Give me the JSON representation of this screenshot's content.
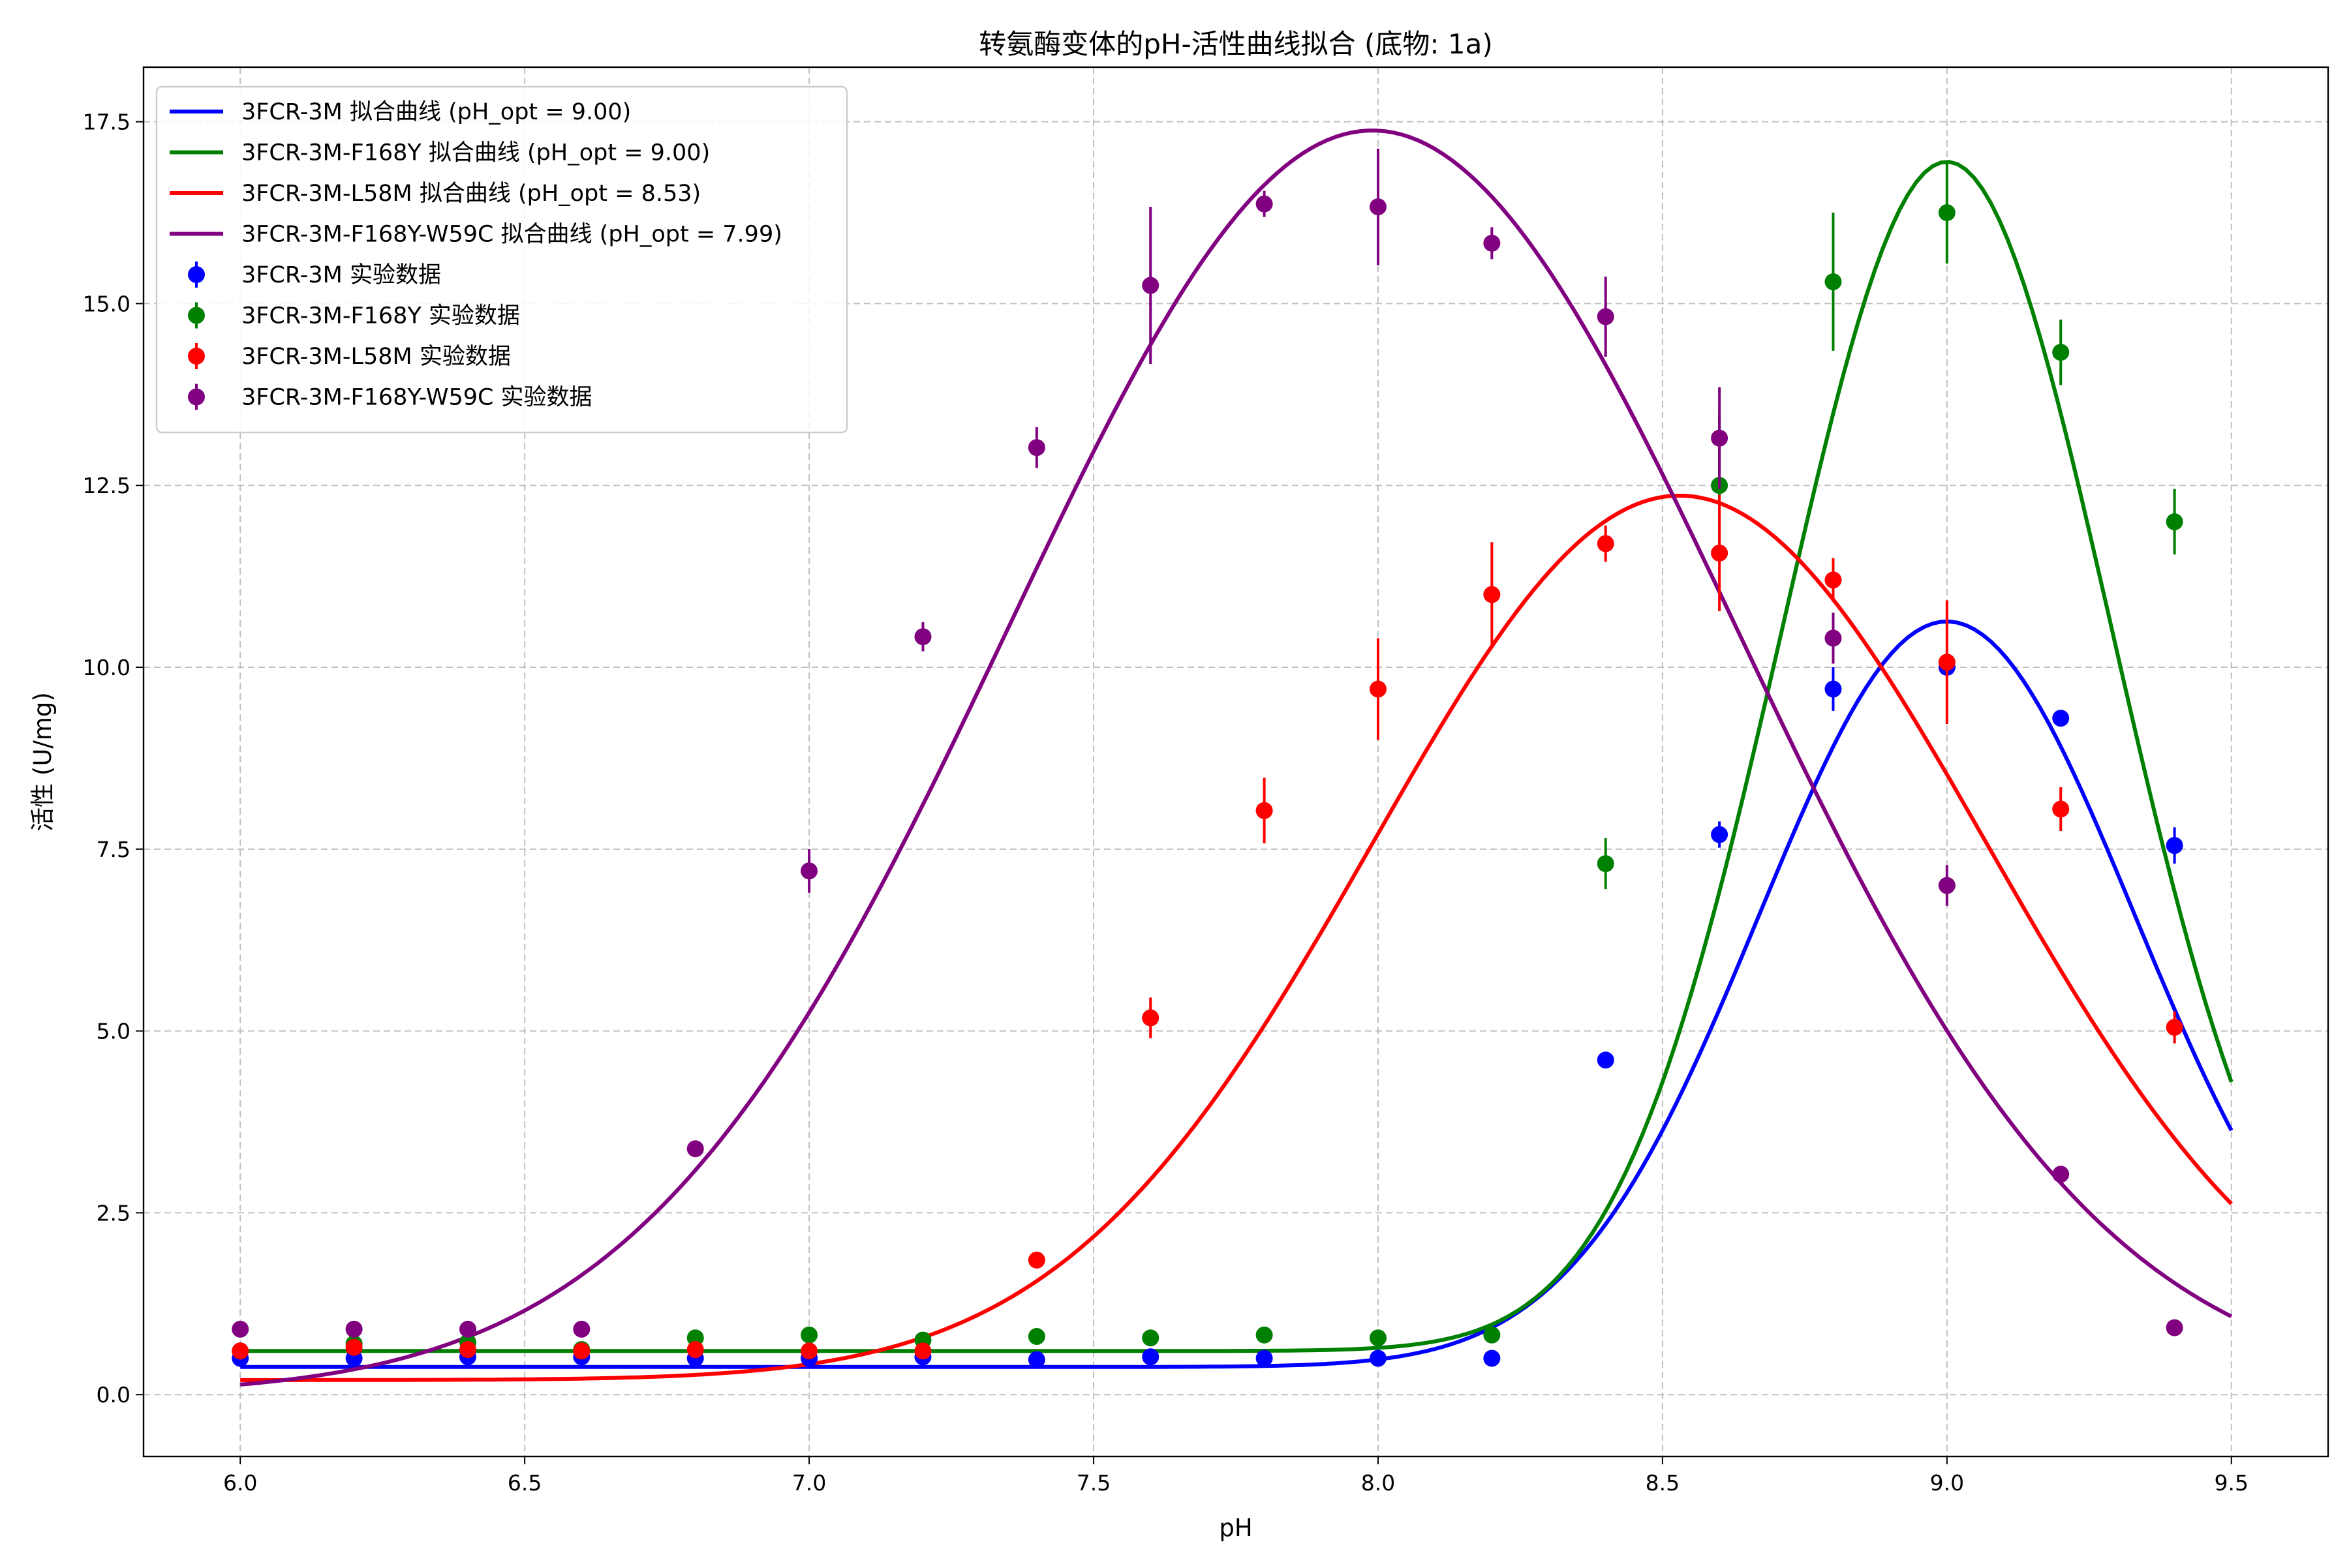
{
  "chart_data": {
    "type": "line",
    "title": "转氨酶变体的pH-活性曲线拟合 (底物: 1a)",
    "xlabel": "pH",
    "ylabel": "活性 (U/mg)",
    "xlim": [
      5.83,
      9.67
    ],
    "ylim": [
      -0.85,
      18.25
    ],
    "xticks": [
      6.0,
      6.5,
      7.0,
      7.5,
      8.0,
      8.5,
      9.0,
      9.5
    ],
    "xtick_labels": [
      "6.0",
      "6.5",
      "7.0",
      "7.5",
      "8.0",
      "8.5",
      "9.0",
      "9.5"
    ],
    "yticks": [
      0.0,
      2.5,
      5.0,
      7.5,
      10.0,
      12.5,
      15.0,
      17.5
    ],
    "ytick_labels": [
      "0.0",
      "2.5",
      "5.0",
      "7.5",
      "10.0",
      "12.5",
      "15.0",
      "17.5"
    ],
    "grid": true,
    "legend_position": "top-left",
    "fit_range": [
      6.0,
      9.5
    ],
    "series": [
      {
        "fit_name": "3FCR-3M 拟合曲线 (pH_opt = 9.00)",
        "data_name": "3FCR-3M 实验数据",
        "color": "#0000ff",
        "fit": {
          "model": "gaussian",
          "amplitude": 10.25,
          "center": 9.0,
          "sigma": 0.33,
          "baseline": 0.38
        },
        "points": [
          {
            "x": 6.0,
            "y": 0.5,
            "err": 0.0
          },
          {
            "x": 6.2,
            "y": 0.5,
            "err": 0.0
          },
          {
            "x": 6.4,
            "y": 0.52,
            "err": 0.0
          },
          {
            "x": 6.6,
            "y": 0.52,
            "err": 0.0
          },
          {
            "x": 6.8,
            "y": 0.5,
            "err": 0.0
          },
          {
            "x": 7.0,
            "y": 0.5,
            "err": 0.0
          },
          {
            "x": 7.2,
            "y": 0.52,
            "err": 0.0
          },
          {
            "x": 7.4,
            "y": 0.48,
            "err": 0.0
          },
          {
            "x": 7.6,
            "y": 0.52,
            "err": 0.0
          },
          {
            "x": 7.8,
            "y": 0.5,
            "err": 0.0
          },
          {
            "x": 8.0,
            "y": 0.5,
            "err": 0.0
          },
          {
            "x": 8.2,
            "y": 0.5,
            "err": 0.0
          },
          {
            "x": 8.4,
            "y": 4.6,
            "err": 0.0
          },
          {
            "x": 8.6,
            "y": 7.7,
            "err": 0.18
          },
          {
            "x": 8.8,
            "y": 9.7,
            "err": 0.3
          },
          {
            "x": 9.0,
            "y": 10.0,
            "err": 0.0
          },
          {
            "x": 9.2,
            "y": 9.3,
            "err": 0.0
          },
          {
            "x": 9.4,
            "y": 7.55,
            "err": 0.25
          }
        ]
      },
      {
        "fit_name": "3FCR-3M-F168Y 拟合曲线 (pH_opt = 9.00)",
        "data_name": "3FCR-3M-F168Y 实验数据",
        "color": "#008000",
        "fit": {
          "model": "gaussian",
          "amplitude": 16.35,
          "center": 9.0,
          "sigma": 0.29,
          "baseline": 0.6
        },
        "points": [
          {
            "x": 6.0,
            "y": 0.6,
            "err": 0.0
          },
          {
            "x": 6.2,
            "y": 0.7,
            "err": 0.0
          },
          {
            "x": 6.4,
            "y": 0.72,
            "err": 0.0
          },
          {
            "x": 6.6,
            "y": 0.62,
            "err": 0.0
          },
          {
            "x": 6.8,
            "y": 0.78,
            "err": 0.0
          },
          {
            "x": 7.0,
            "y": 0.82,
            "err": 0.0
          },
          {
            "x": 7.2,
            "y": 0.75,
            "err": 0.0
          },
          {
            "x": 7.4,
            "y": 0.8,
            "err": 0.0
          },
          {
            "x": 7.6,
            "y": 0.78,
            "err": 0.0
          },
          {
            "x": 7.8,
            "y": 0.82,
            "err": 0.0
          },
          {
            "x": 8.0,
            "y": 0.78,
            "err": 0.0
          },
          {
            "x": 8.2,
            "y": 0.82,
            "err": 0.0
          },
          {
            "x": 8.4,
            "y": 7.3,
            "err": 0.35
          },
          {
            "x": 8.6,
            "y": 12.5,
            "err": 1.0
          },
          {
            "x": 8.8,
            "y": 15.3,
            "err": 0.95
          },
          {
            "x": 9.0,
            "y": 16.25,
            "err": 0.7
          },
          {
            "x": 9.2,
            "y": 14.33,
            "err": 0.45
          },
          {
            "x": 9.4,
            "y": 12.0,
            "err": 0.45
          }
        ]
      },
      {
        "fit_name": "3FCR-3M-L58M 拟合曲线 (pH_opt = 8.53)",
        "data_name": "3FCR-3M-L58M 实验数据",
        "color": "#ff0000",
        "fit": {
          "model": "gaussian",
          "amplitude": 12.16,
          "center": 8.53,
          "sigma": 0.54,
          "baseline": 0.2
        },
        "points": [
          {
            "x": 6.0,
            "y": 0.6,
            "err": 0.0
          },
          {
            "x": 6.2,
            "y": 0.65,
            "err": 0.0
          },
          {
            "x": 6.4,
            "y": 0.62,
            "err": 0.0
          },
          {
            "x": 6.6,
            "y": 0.6,
            "err": 0.0
          },
          {
            "x": 6.8,
            "y": 0.62,
            "err": 0.0
          },
          {
            "x": 7.0,
            "y": 0.6,
            "err": 0.0
          },
          {
            "x": 7.2,
            "y": 0.6,
            "err": 0.0
          },
          {
            "x": 7.4,
            "y": 1.85,
            "err": 0.0
          },
          {
            "x": 7.6,
            "y": 5.18,
            "err": 0.28
          },
          {
            "x": 7.8,
            "y": 8.03,
            "err": 0.45
          },
          {
            "x": 8.0,
            "y": 9.7,
            "err": 0.7
          },
          {
            "x": 8.2,
            "y": 11.0,
            "err": 0.72
          },
          {
            "x": 8.4,
            "y": 11.7,
            "err": 0.25
          },
          {
            "x": 8.6,
            "y": 11.57,
            "err": 0.8
          },
          {
            "x": 8.8,
            "y": 11.2,
            "err": 0.3
          },
          {
            "x": 9.0,
            "y": 10.07,
            "err": 0.85
          },
          {
            "x": 9.2,
            "y": 8.05,
            "err": 0.3
          },
          {
            "x": 9.4,
            "y": 5.05,
            "err": 0.22
          }
        ]
      },
      {
        "fit_name": "3FCR-3M-F168Y-W59C 拟合曲线 (pH_opt = 7.99)",
        "data_name": "3FCR-3M-F168Y-W59C 实验数据",
        "color": "#800080",
        "fit": {
          "model": "gaussian",
          "amplitude": 17.38,
          "center": 7.99,
          "sigma": 0.64,
          "baseline": 0.0
        },
        "points": [
          {
            "x": 6.0,
            "y": 0.9,
            "err": 0.0
          },
          {
            "x": 6.2,
            "y": 0.9,
            "err": 0.0
          },
          {
            "x": 6.4,
            "y": 0.9,
            "err": 0.0
          },
          {
            "x": 6.6,
            "y": 0.9,
            "err": 0.0
          },
          {
            "x": 6.8,
            "y": 3.38,
            "err": 0.0
          },
          {
            "x": 7.0,
            "y": 7.2,
            "err": 0.3
          },
          {
            "x": 7.2,
            "y": 10.42,
            "err": 0.2
          },
          {
            "x": 7.4,
            "y": 13.02,
            "err": 0.28
          },
          {
            "x": 7.6,
            "y": 15.25,
            "err": 1.08
          },
          {
            "x": 7.8,
            "y": 16.37,
            "err": 0.18
          },
          {
            "x": 8.0,
            "y": 16.33,
            "err": 0.8
          },
          {
            "x": 8.2,
            "y": 15.83,
            "err": 0.22
          },
          {
            "x": 8.4,
            "y": 14.82,
            "err": 0.55
          },
          {
            "x": 8.6,
            "y": 13.15,
            "err": 0.7
          },
          {
            "x": 8.8,
            "y": 10.4,
            "err": 0.35
          },
          {
            "x": 9.0,
            "y": 7.0,
            "err": 0.28
          },
          {
            "x": 9.2,
            "y": 3.03,
            "err": 0.0
          },
          {
            "x": 9.4,
            "y": 0.92,
            "err": 0.0
          }
        ]
      }
    ]
  }
}
